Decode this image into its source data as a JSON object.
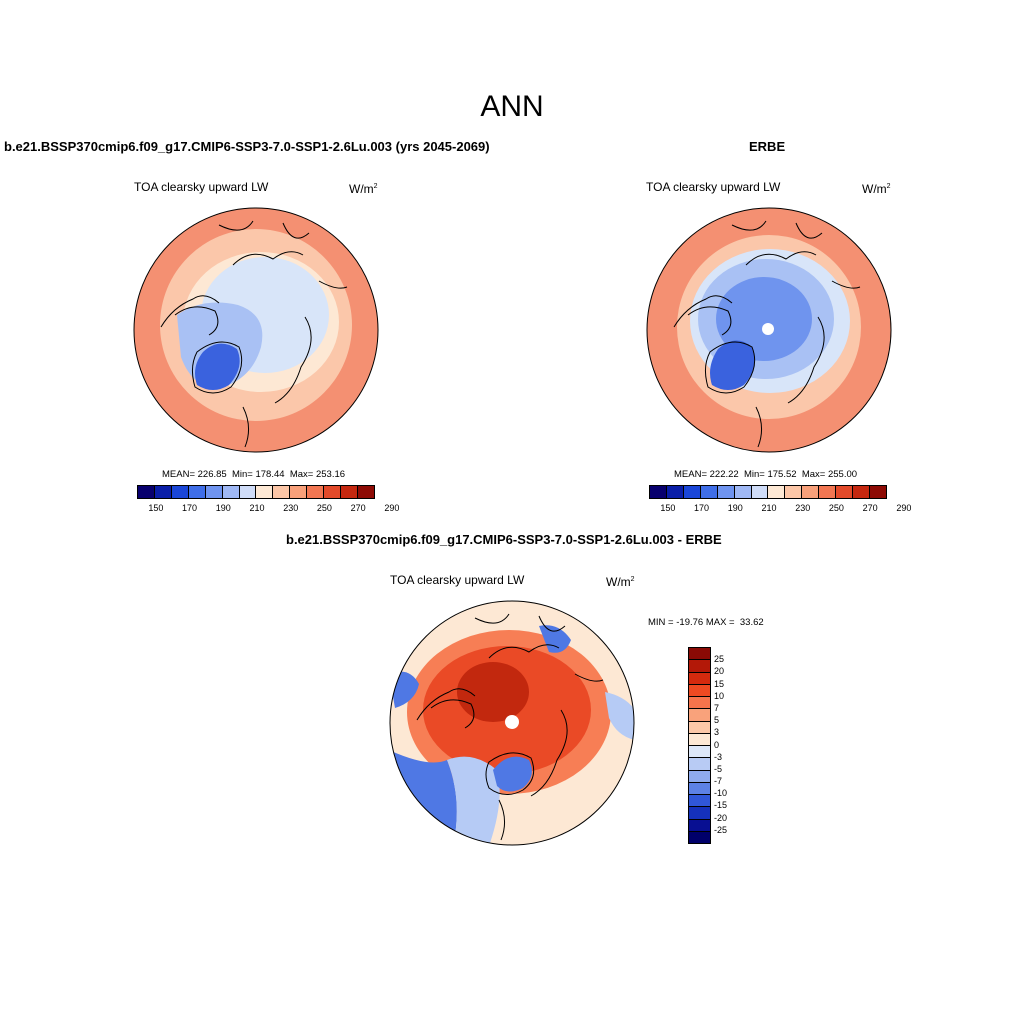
{
  "figure": {
    "title": "ANN"
  },
  "panels": [
    {
      "id": "model",
      "title": "b.e21.BSSP370cmip6.f09_g17.CMIP6-SSP3-7.0-SSP1-2.6Lu.003 (yrs 2045-2069)",
      "field_label": "TOA clearsky upward LW",
      "units": "W/m",
      "units_sup": "2",
      "stats": {
        "mean_label": "MEAN=",
        "mean": "226.85",
        "min_label": "Min=",
        "min": "178.44",
        "max_label": "Max=",
        "max": "253.16"
      }
    },
    {
      "id": "obs",
      "title": "ERBE",
      "field_label": "TOA clearsky upward LW",
      "units": "W/m",
      "units_sup": "2",
      "stats": {
        "mean_label": "MEAN=",
        "mean": "222.22",
        "min_label": "Min=",
        "min": "175.52",
        "max_label": "Max=",
        "max": "255.00"
      }
    },
    {
      "id": "diff",
      "title": "b.e21.BSSP370cmip6.f09_g17.CMIP6-SSP3-7.0-SSP1-2.6Lu.003 - ERBE",
      "field_label": "TOA clearsky upward LW",
      "units": "W/m",
      "units_sup": "2",
      "stats": {
        "min_label": "MIN =",
        "min": "-19.76",
        "max_label": "MAX =",
        "max": "33.62"
      }
    }
  ],
  "abs_colorbar": {
    "labels": [
      "150",
      "170",
      "190",
      "210",
      "230",
      "250",
      "270",
      "290"
    ],
    "colors": [
      "#08006e",
      "#0a1ea8",
      "#1a46d8",
      "#3f6ee8",
      "#6f94f0",
      "#9fb8f5",
      "#cfdcf8",
      "#fde8d4",
      "#fcc6a7",
      "#f8a07a",
      "#f27652",
      "#e34a2a",
      "#c52810",
      "#8e0b05"
    ]
  },
  "diff_colorbar": {
    "labels": [
      "25",
      "20",
      "15",
      "10",
      "7",
      "5",
      "3",
      "0",
      "-3",
      "-5",
      "-7",
      "-10",
      "-15",
      "-20",
      "-25"
    ],
    "colors": [
      "#8a0a05",
      "#b31808",
      "#d52a0e",
      "#ee4a22",
      "#f6744c",
      "#f9a27b",
      "#fcc8a8",
      "#fde8d4",
      "#dde7f8",
      "#b8cbf4",
      "#8fabee",
      "#5d82e6",
      "#3057d9",
      "#1531bb",
      "#080f92",
      "#00006a"
    ]
  },
  "map_colors": {
    "outer_warm": "#f49072",
    "mid_warm": "#fbc7aa",
    "pale": "#fde8d4",
    "pale_blue": "#d8e5f9",
    "light_blue": "#a9c1f4",
    "mid_blue": "#6f94ee",
    "deep_blue": "#3a62de",
    "diff_base": "#fde8d4",
    "diff_red": "#ea4a26",
    "diff_orange": "#f77e55",
    "diff_dark": "#c2280e",
    "diff_blue": "#4f78e4",
    "diff_lightblue": "#b6cbf5"
  }
}
